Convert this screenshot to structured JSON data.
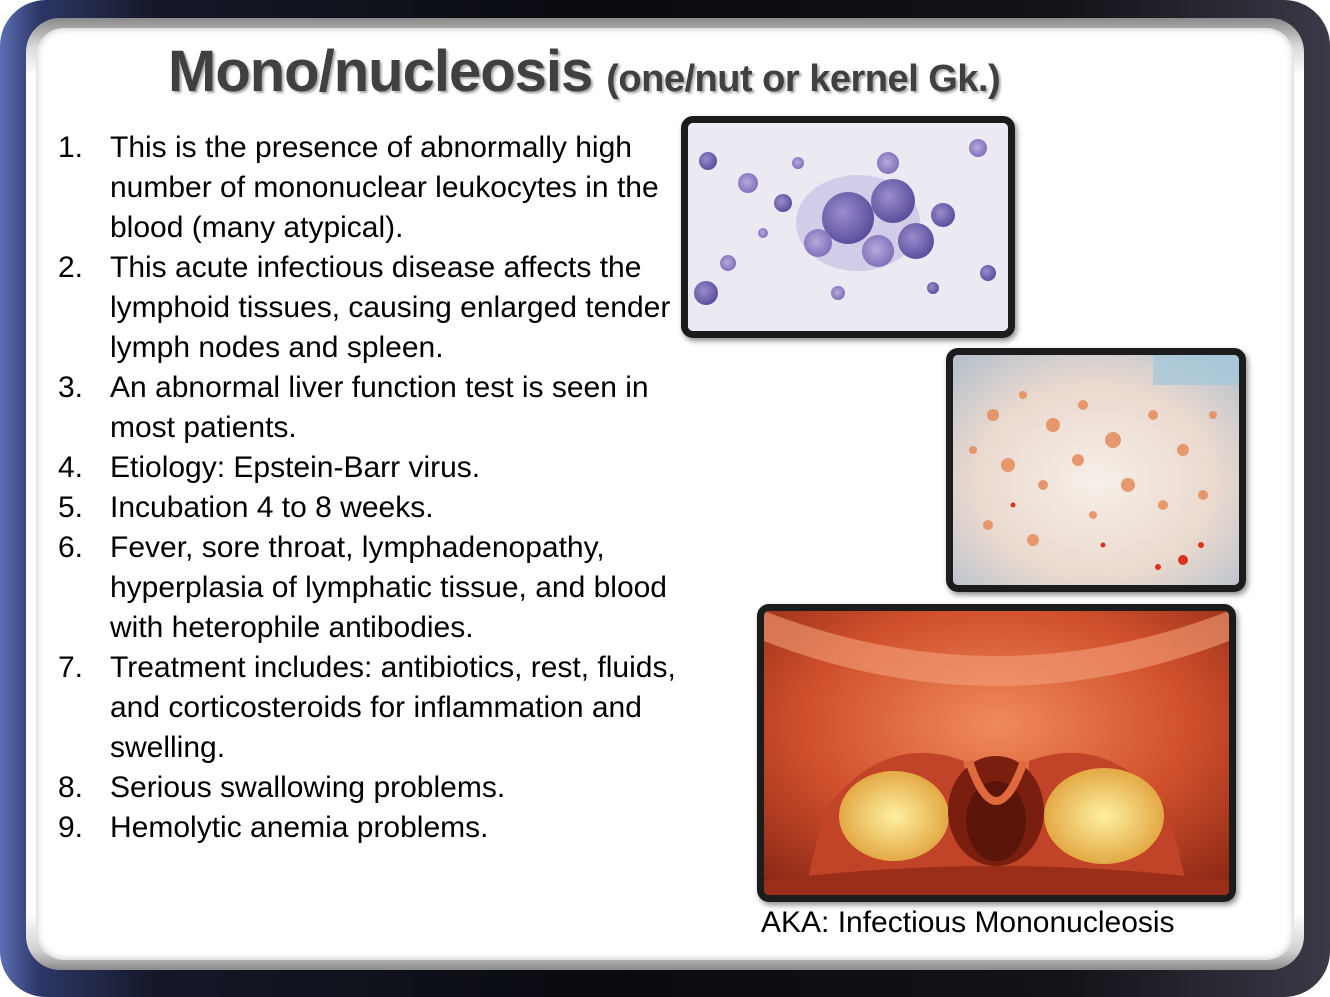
{
  "slide": {
    "title_main": "Mono/nucleosis",
    "title_sub": "(one/nut or kernel Gk.)",
    "bullets": [
      {
        "num": "1.",
        "text": "This is the presence of abnormally high number of mononuclear leukocytes in the blood (many atypical)."
      },
      {
        "num": "2.",
        "text": "This acute infectious disease affects the lymphoid tissues, causing enlarged tender lymph nodes and spleen."
      },
      {
        "num": "3.",
        "text": "An abnormal liver function test is seen in most patients."
      },
      {
        "num": "4.",
        "text": "Etiology: Epstein-Barr virus."
      },
      {
        "num": "5.",
        "text": "Incubation 4 to 8 weeks."
      },
      {
        "num": "6.",
        "text": "Fever, sore throat, lymphadenopathy, hyperplasia of lymphatic tissue, and blood with heterophile antibodies."
      },
      {
        "num": "7.",
        "text": "Treatment includes: antibiotics, rest, fluids, and corticosteroids for inflammation and swelling."
      },
      {
        "num": "8.",
        "text": "Serious swallowing problems."
      },
      {
        "num": "9.",
        "text": "Hemolytic anemia problems."
      }
    ],
    "caption": "AKA: Infectious Mononucleosis",
    "colors": {
      "title_text": "#404040",
      "body_text": "#000000",
      "frame_dark": "#0a0b10",
      "frame_accent": "#5b6fb4",
      "photo_border": "#1c1c1c"
    }
  }
}
